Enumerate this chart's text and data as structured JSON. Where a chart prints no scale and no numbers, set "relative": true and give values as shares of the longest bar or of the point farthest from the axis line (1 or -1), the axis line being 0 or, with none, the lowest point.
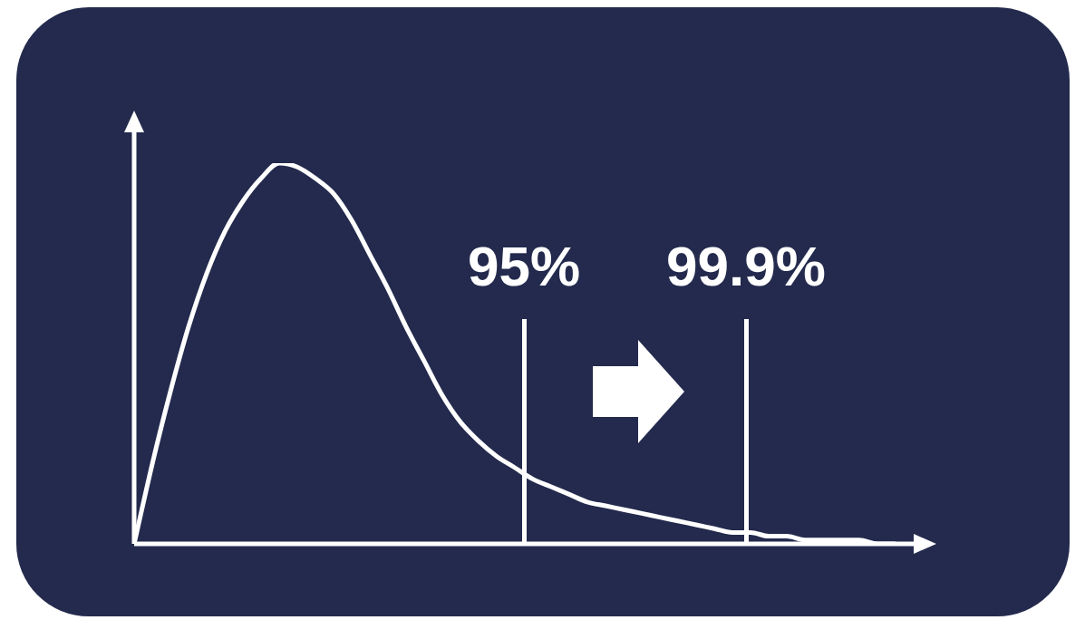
{
  "chart_data": {
    "type": "line",
    "relative": true,
    "categories": [
      null,
      null,
      null,
      null,
      null,
      null,
      null,
      null,
      null,
      null,
      null,
      null,
      null,
      null,
      null,
      null,
      null,
      null,
      null,
      null,
      null,
      null,
      null,
      null,
      null,
      null,
      null,
      null,
      null,
      null,
      null,
      null,
      null,
      null,
      null,
      null,
      null,
      null,
      null,
      null,
      null,
      null,
      null
    ],
    "series": [
      {
        "color": "#ffffff",
        "values": [
          0,
          0.21,
          0.4,
          0.57,
          0.71,
          0.82,
          0.9,
          0.96,
          1,
          0.99,
          0.96,
          0.92,
          0.85,
          0.76,
          0.67,
          0.57,
          0.48,
          0.39,
          0.32,
          0.27,
          0.23,
          0.2,
          0.17,
          0.15,
          0.13,
          0.11,
          0.1,
          0.09,
          0.08,
          0.07,
          0.06,
          0.05,
          0.04,
          0.03,
          0.03,
          0.02,
          0.02,
          0.01,
          0.01,
          0.01,
          0.01,
          0,
          0
        ]
      }
    ],
    "annotations": [
      "95%",
      "99.9%"
    ]
  }
}
